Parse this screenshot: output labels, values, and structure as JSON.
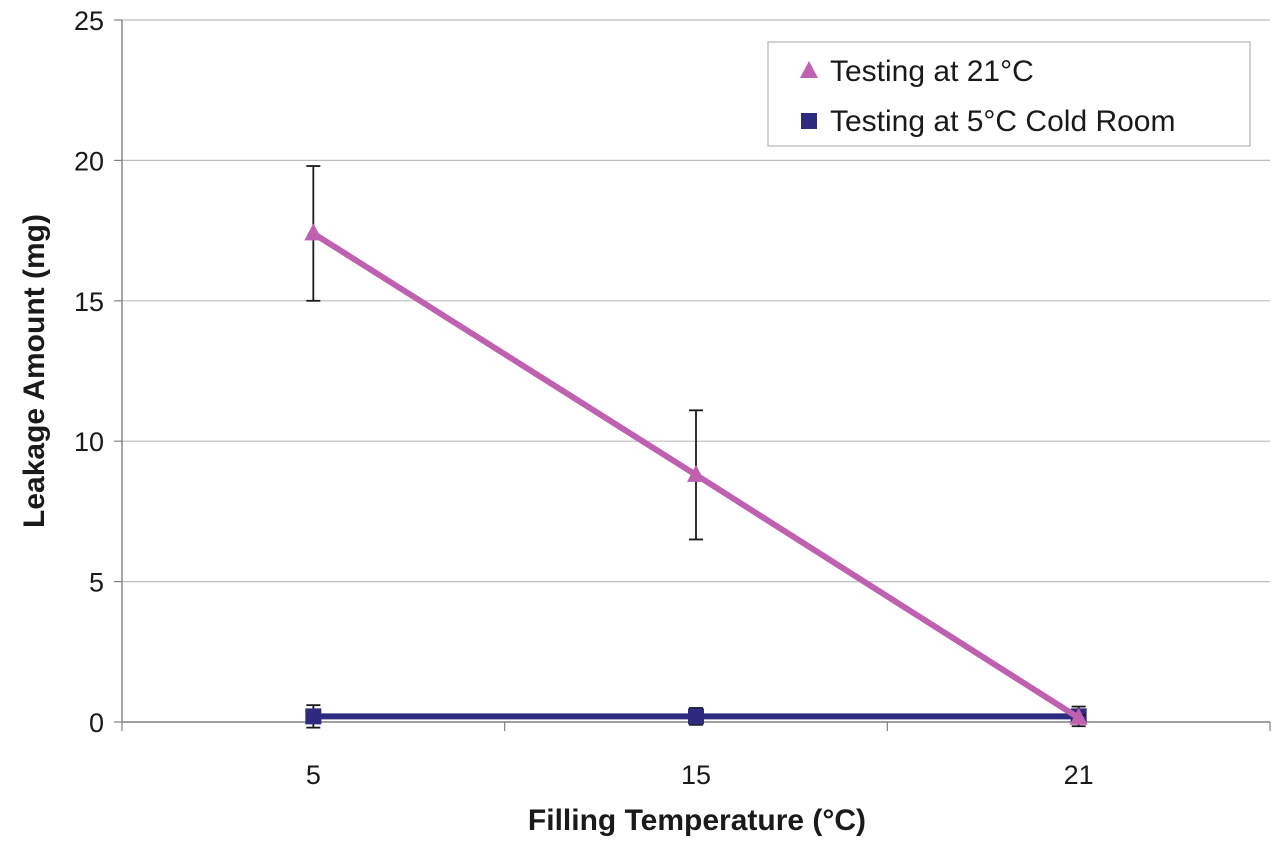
{
  "chart_data": {
    "type": "line",
    "title": "",
    "xlabel": "Filling Temperature (°C)",
    "ylabel": "Leakage Amount (mg)",
    "categories": [
      "5",
      "15",
      "21"
    ],
    "ylim": [
      0,
      25
    ],
    "yticks": [
      0,
      5,
      10,
      15,
      20,
      25
    ],
    "grid": true,
    "legend_position": "top-right",
    "series": [
      {
        "name": "Testing at 21°C",
        "marker": "triangle",
        "color": "#c060b0",
        "values": [
          17.4,
          8.8,
          0.15
        ],
        "errors": [
          2.4,
          2.3,
          0.1
        ]
      },
      {
        "name": "Testing at 5°C Cold Room",
        "marker": "square",
        "color": "#2e2a80",
        "values": [
          0.2,
          0.2,
          0.2
        ],
        "errors": [
          0.4,
          0.3,
          0.35
        ]
      }
    ]
  }
}
